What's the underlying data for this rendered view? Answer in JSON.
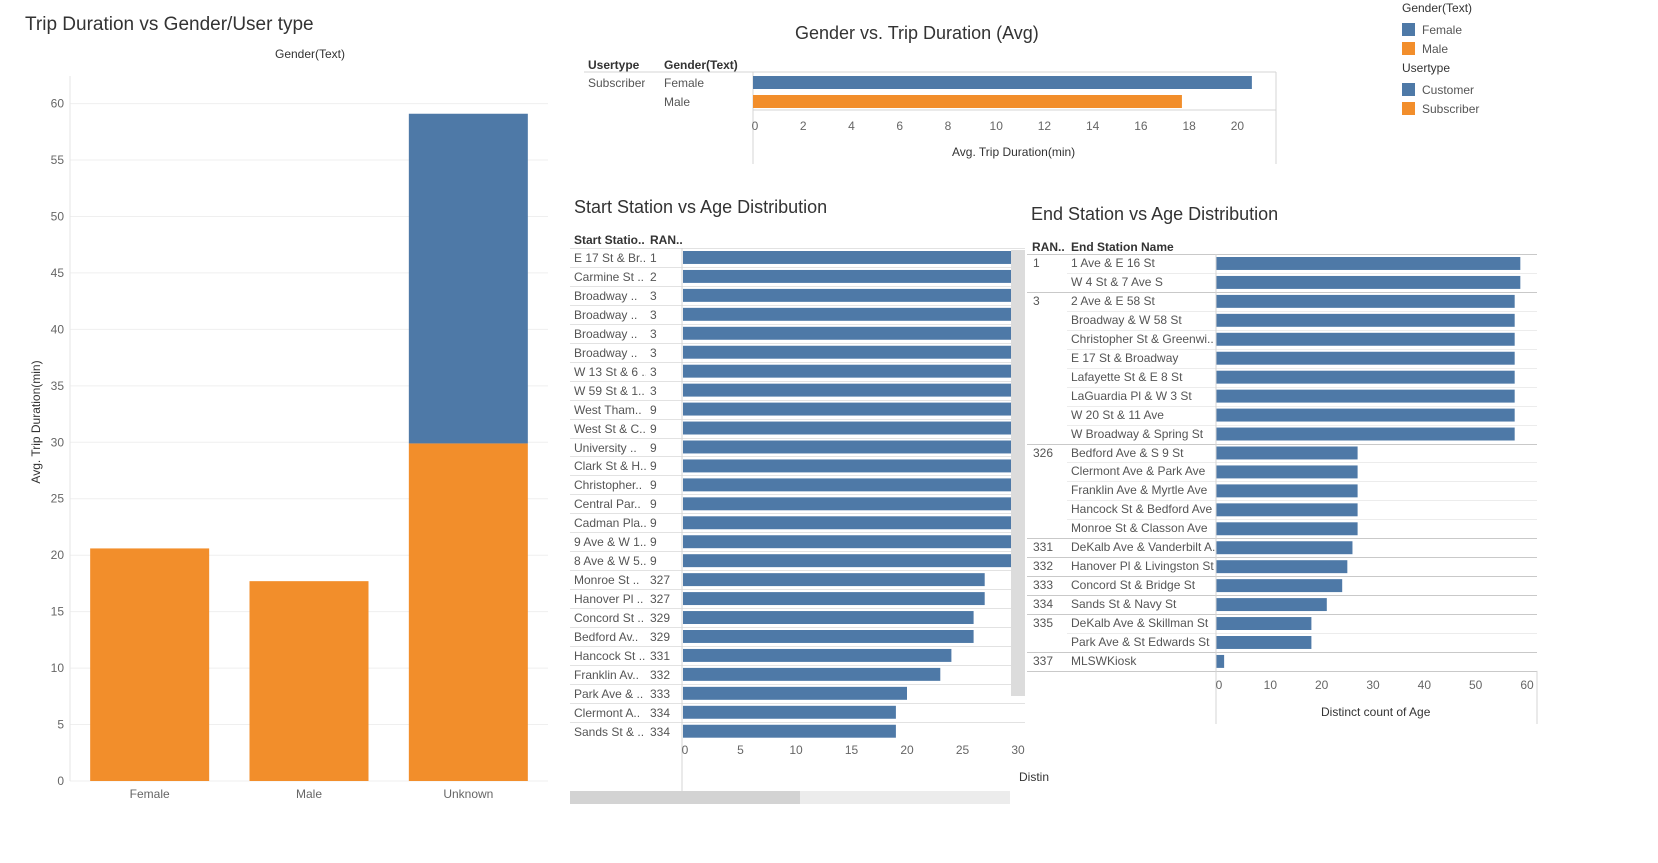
{
  "colors": {
    "blue": "#4e79a7",
    "orange": "#f28e2b"
  },
  "legend": {
    "gender_title": "Gender(Text)",
    "gender_items": [
      {
        "label": "Female",
        "color": "#4e79a7"
      },
      {
        "label": "Male",
        "color": "#f28e2b"
      }
    ],
    "usertype_title": "Usertype",
    "usertype_items": [
      {
        "label": "Customer",
        "color": "#4e79a7"
      },
      {
        "label": "Subscriber",
        "color": "#f28e2b"
      }
    ]
  },
  "chart_data": [
    {
      "type": "bar",
      "title": "Trip Duration vs Gender/User type",
      "column_header": "Gender(Text)",
      "ylabel": "Avg. Trip Duration(min)",
      "xlabel": "",
      "ylim": [
        0,
        62
      ],
      "yticks": [
        0,
        5,
        10,
        15,
        20,
        25,
        30,
        35,
        40,
        45,
        50,
        55,
        60
      ],
      "categories": [
        "Female",
        "Male",
        "Unknown"
      ],
      "series": [
        {
          "name": "Subscriber",
          "color": "#f28e2b",
          "values": [
            20.6,
            17.7,
            29.9
          ]
        },
        {
          "name": "Customer",
          "color": "#4e79a7",
          "values": [
            0,
            0,
            29.2
          ]
        }
      ],
      "stacked": true,
      "grid": true
    },
    {
      "type": "bar",
      "orientation": "horizontal",
      "title": "Gender vs. Trip Duration (Avg)",
      "row_headers": [
        "Usertype",
        "Gender(Text)"
      ],
      "usertype": "Subscriber",
      "categories": [
        "Female",
        "Male"
      ],
      "values": [
        20.6,
        17.7
      ],
      "colors": [
        "#4e79a7",
        "#f28e2b"
      ],
      "xlabel": "Avg. Trip Duration(min)",
      "xlim": [
        0,
        21.6
      ],
      "xticks": [
        0,
        2,
        4,
        6,
        8,
        10,
        12,
        14,
        16,
        18,
        20
      ]
    },
    {
      "type": "bar",
      "orientation": "horizontal",
      "title": "Start Station vs Age Distribution",
      "row_headers": [
        "Start Statio..",
        "RAN.."
      ],
      "rows": [
        {
          "station": "E 17 St & Br..",
          "rank": "1",
          "value": 29.6
        },
        {
          "station": "Carmine St ..",
          "rank": "2",
          "value": 29.6
        },
        {
          "station": "Broadway ..",
          "rank": "3",
          "value": 29.6
        },
        {
          "station": "Broadway ..",
          "rank": "3",
          "value": 29.6
        },
        {
          "station": "Broadway ..",
          "rank": "3",
          "value": 29.6
        },
        {
          "station": "Broadway ..",
          "rank": "3",
          "value": 29.6
        },
        {
          "station": "W 13 St & 6 ..",
          "rank": "3",
          "value": 29.6
        },
        {
          "station": "W 59 St & 1..",
          "rank": "3",
          "value": 29.6
        },
        {
          "station": "West Tham..",
          "rank": "9",
          "value": 29.6
        },
        {
          "station": "West St & C..",
          "rank": "9",
          "value": 29.6
        },
        {
          "station": "University ..",
          "rank": "9",
          "value": 29.6
        },
        {
          "station": "Clark St & H..",
          "rank": "9",
          "value": 29.6
        },
        {
          "station": "Christopher..",
          "rank": "9",
          "value": 29.6
        },
        {
          "station": "Central Par..",
          "rank": "9",
          "value": 29.6
        },
        {
          "station": "Cadman Pla..",
          "rank": "9",
          "value": 29.6
        },
        {
          "station": "9 Ave & W 1..",
          "rank": "9",
          "value": 29.6
        },
        {
          "station": "8 Ave & W 5..",
          "rank": "9",
          "value": 29.6
        },
        {
          "station": "Monroe St ..",
          "rank": "327",
          "value": 27
        },
        {
          "station": "Hanover Pl ..",
          "rank": "327",
          "value": 27
        },
        {
          "station": "Concord St ..",
          "rank": "329",
          "value": 26
        },
        {
          "station": "Bedford Av..",
          "rank": "329",
          "value": 26
        },
        {
          "station": "Hancock St ..",
          "rank": "331",
          "value": 24
        },
        {
          "station": "Franklin Av..",
          "rank": "332",
          "value": 23
        },
        {
          "station": "Park Ave & ..",
          "rank": "333",
          "value": 20
        },
        {
          "station": "Clermont A..",
          "rank": "334",
          "value": 19
        },
        {
          "station": "Sands St & ..",
          "rank": "334",
          "value": 19
        }
      ],
      "xlabel": "Distin",
      "xlim": [
        0,
        30
      ],
      "xticks": [
        0,
        5,
        10,
        15,
        20,
        25,
        30
      ],
      "color": "#4e79a7"
    },
    {
      "type": "bar",
      "orientation": "horizontal",
      "title": "End Station vs Age Distribution",
      "row_headers": [
        "RAN..",
        "End Station Name"
      ],
      "groups": [
        {
          "rank": "1",
          "stations": [
            {
              "name": "1 Ave & E 16 St",
              "value": 58.7
            },
            {
              "name": "W 4 St & 7 Ave S",
              "value": 58.7
            }
          ]
        },
        {
          "rank": "3",
          "stations": [
            {
              "name": "2 Ave & E 58 St",
              "value": 57.6
            },
            {
              "name": "Broadway & W 58 St",
              "value": 57.6
            },
            {
              "name": "Christopher St & Greenwi..",
              "value": 57.6
            },
            {
              "name": "E 17 St & Broadway",
              "value": 57.6
            },
            {
              "name": "Lafayette St & E 8 St",
              "value": 57.6
            },
            {
              "name": "LaGuardia Pl & W 3 St",
              "value": 57.6
            },
            {
              "name": "W 20 St & 11 Ave",
              "value": 57.6
            },
            {
              "name": "W Broadway & Spring St",
              "value": 57.6
            }
          ]
        },
        {
          "rank": "326",
          "stations": [
            {
              "name": "Bedford Ave & S 9 St",
              "value": 27
            },
            {
              "name": "Clermont Ave & Park Ave",
              "value": 27
            },
            {
              "name": "Franklin Ave & Myrtle Ave",
              "value": 27
            },
            {
              "name": "Hancock St & Bedford Ave",
              "value": 27
            },
            {
              "name": "Monroe St & Classon Ave",
              "value": 27
            }
          ]
        },
        {
          "rank": "331",
          "stations": [
            {
              "name": "DeKalb Ave & Vanderbilt A..",
              "value": 26
            }
          ]
        },
        {
          "rank": "332",
          "stations": [
            {
              "name": "Hanover Pl & Livingston St",
              "value": 25
            }
          ]
        },
        {
          "rank": "333",
          "stations": [
            {
              "name": "Concord St & Bridge St",
              "value": 24
            }
          ]
        },
        {
          "rank": "334",
          "stations": [
            {
              "name": "Sands St & Navy St",
              "value": 21
            }
          ]
        },
        {
          "rank": "335",
          "stations": [
            {
              "name": "DeKalb Ave & Skillman St",
              "value": 18
            },
            {
              "name": "Park Ave & St Edwards St",
              "value": 18
            }
          ]
        },
        {
          "rank": "337",
          "stations": [
            {
              "name": "MLSWKiosk",
              "value": 1
            }
          ]
        }
      ],
      "xlabel": "Distinct count of Age",
      "xlim": [
        0,
        60
      ],
      "xticks": [
        0,
        10,
        20,
        30,
        40,
        50,
        60
      ],
      "color": "#4e79a7"
    }
  ]
}
